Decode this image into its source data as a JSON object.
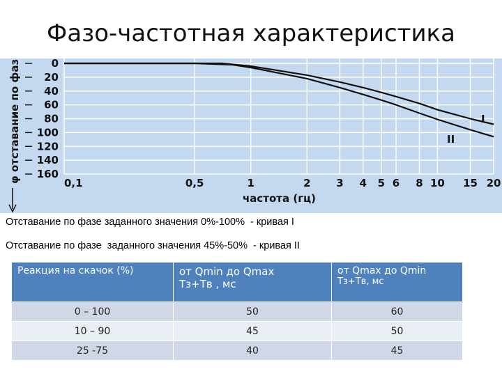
{
  "slide": {
    "title": "Фазо-частотная характеристика",
    "annotation_1": "Отставание по фазе заданного значения 0%-100%  - кривая I",
    "annotation_2": "Отставание по фазе  заданного значения 45%-50%  - кривая II"
  },
  "colors": {
    "chart_bg": "#c4d9f0",
    "grid": "#ffffff",
    "curve": "#111111",
    "header_bg": "#4f81bd"
  },
  "chart_data": {
    "type": "line",
    "ylabel": "φ  отставание по фазе",
    "xlabel": "частота (гц)",
    "x_scale": "log",
    "x_ticks": [
      0.1,
      0.5,
      1,
      2,
      3,
      4,
      5,
      6,
      8,
      10,
      15,
      20
    ],
    "x_tick_labels": [
      "0,1",
      "0,5",
      "1",
      "2",
      "3",
      "4",
      "5",
      "6",
      "8",
      "10",
      "15",
      "20"
    ],
    "y_ticks": [
      0,
      20,
      40,
      60,
      80,
      100,
      120,
      140,
      160
    ],
    "y_tick_labels": [
      "0",
      "20",
      "40",
      "60",
      "80",
      "100",
      "120",
      "140",
      "160"
    ],
    "y_inverted": true,
    "ylim": [
      0,
      160
    ],
    "xlim": [
      0.1,
      20
    ],
    "series": [
      {
        "name": "I",
        "x": [
          0.1,
          0.7,
          1,
          2,
          3,
          4,
          5,
          6,
          8,
          10,
          15,
          20
        ],
        "y": [
          0,
          0,
          4,
          17,
          27,
          35,
          42,
          48,
          58,
          67,
          80,
          88
        ]
      },
      {
        "name": "II",
        "x": [
          0.1,
          0.5,
          0.8,
          1,
          2,
          3,
          4,
          5,
          6,
          8,
          10,
          15,
          20
        ],
        "y": [
          0,
          0,
          2,
          6,
          22,
          35,
          45,
          53,
          60,
          72,
          81,
          96,
          106
        ]
      }
    ]
  },
  "table": {
    "headers": [
      {
        "line1": "Реакция на скачок (%)",
        "line2": ""
      },
      {
        "line1": "  от Qmin  до  Qmax",
        "line2": "Тз+Тв  , мс"
      },
      {
        "line1": " от  Qmax  до  Qmin",
        "line2": "Тз+Тв,   мс"
      }
    ],
    "rows": [
      [
        "0 – 100",
        "50",
        "60"
      ],
      [
        "10 – 90",
        "45",
        "50"
      ],
      [
        "25 -75",
        "40",
        "45"
      ]
    ]
  }
}
